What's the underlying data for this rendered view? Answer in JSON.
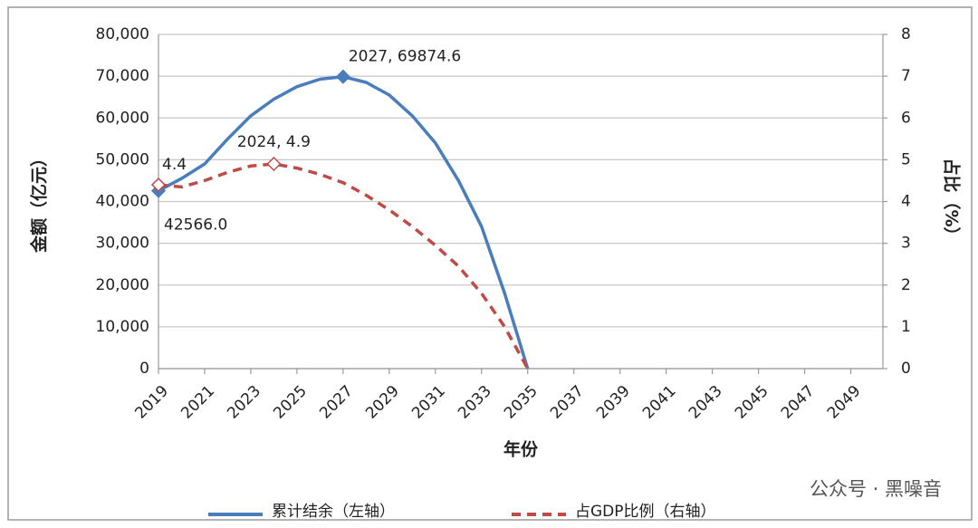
{
  "chart_data": {
    "type": "line",
    "x_label": "年份",
    "y_label": "金额（亿元）",
    "y2_label": "占比（%）",
    "x": [
      2019,
      2020,
      2021,
      2022,
      2023,
      2024,
      2025,
      2026,
      2027,
      2028,
      2029,
      2030,
      2031,
      2032,
      2033,
      2034,
      2035
    ],
    "series": [
      {
        "name": "累计结余（左轴）",
        "color": "#4a7ebb",
        "axis": "y",
        "values": [
          42566.0,
          45500,
          49000,
          55000,
          60500,
          64500,
          67500,
          69300,
          69874.6,
          68500,
          65500,
          60500,
          54000,
          45000,
          34000,
          18000,
          0
        ]
      },
      {
        "name": "占GDP比例（右轴）",
        "color": "#be4b48",
        "axis": "y2",
        "dashed": true,
        "values": [
          4.4,
          4.35,
          4.5,
          4.7,
          4.85,
          4.9,
          4.8,
          4.65,
          4.45,
          4.15,
          3.8,
          3.4,
          2.95,
          2.45,
          1.8,
          1.0,
          0
        ]
      }
    ],
    "annotations": [
      {
        "text": "2027, 69874.6",
        "x": 2027,
        "y": 69874.6,
        "axis": "y"
      },
      {
        "text": "42566.0",
        "x": 2019,
        "y": 42566.0,
        "axis": "y"
      },
      {
        "text": "2024, 4.9",
        "x": 2024,
        "y": 4.9,
        "axis": "y2"
      },
      {
        "text": "4.4",
        "x": 2019,
        "y": 4.4,
        "axis": "y2"
      }
    ],
    "xlim": [
      2019,
      2050
    ],
    "xticks": [
      2019,
      2021,
      2023,
      2025,
      2027,
      2029,
      2031,
      2033,
      2035,
      2037,
      2039,
      2041,
      2043,
      2045,
      2047,
      2049
    ],
    "ylim": [
      0,
      80000
    ],
    "yticks": [
      0,
      {
        "value": 10000,
        "label": "10,000"
      },
      {
        "value": 20000,
        "label": "20,000"
      },
      {
        "value": 30000,
        "label": "30,000"
      },
      {
        "value": 40000,
        "label": "40,000"
      },
      {
        "value": 50000,
        "label": "50,000"
      },
      {
        "value": 60000,
        "label": "60,000"
      },
      {
        "value": 70000,
        "label": "70,000"
      },
      {
        "value": 80000,
        "label": "80,000"
      }
    ],
    "y2lim": [
      0,
      8
    ],
    "y2ticks": [
      0,
      1,
      2,
      3,
      4,
      5,
      6,
      7,
      8
    ],
    "grid": true,
    "legend": "bottom",
    "watermark": "公众号 · 黑噪音"
  }
}
